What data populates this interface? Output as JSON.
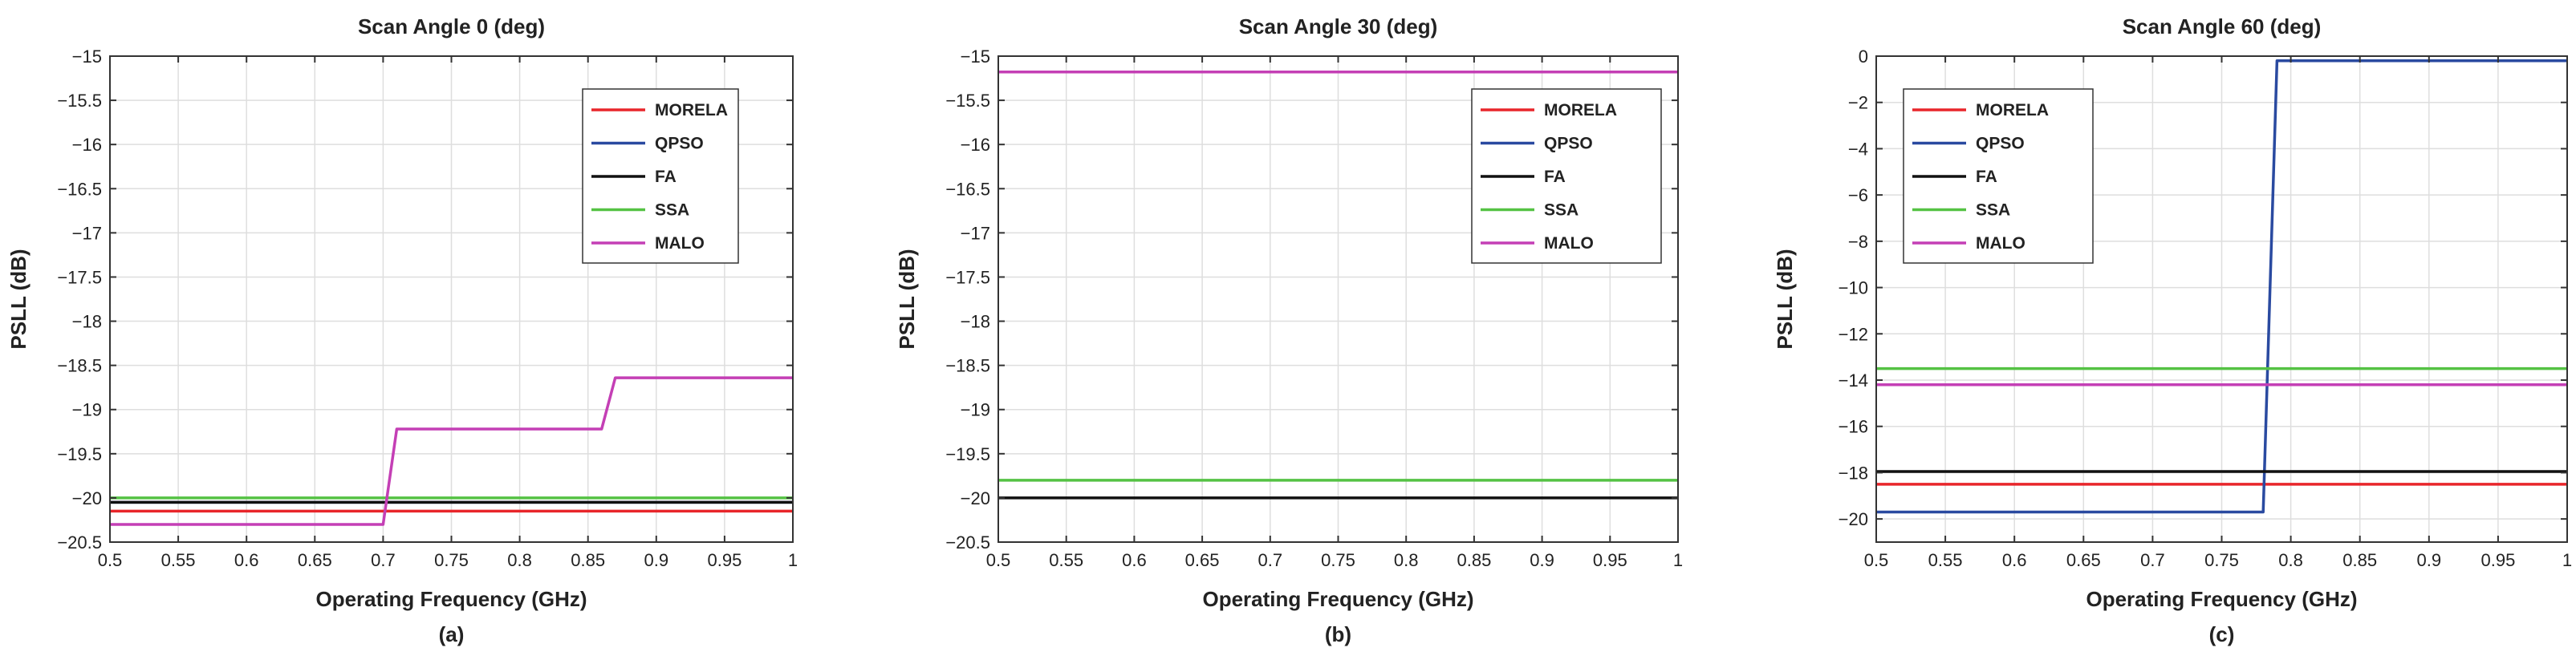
{
  "figure": {
    "captions": [
      "(a)",
      "(b)",
      "(c)"
    ]
  },
  "chart_data": [
    {
      "type": "line",
      "title": "Scan Angle 0 (deg)",
      "xlabel": "Operating Frequency (GHz)",
      "ylabel": "PSLL (dB)",
      "xlim": [
        0.5,
        1
      ],
      "ylim": [
        -20.5,
        -15
      ],
      "xticks": [
        0.5,
        0.55,
        0.6,
        0.65,
        0.7,
        0.75,
        0.8,
        0.85,
        0.9,
        0.95,
        1
      ],
      "xtick_labels": [
        "0.5",
        "0.55",
        "0.6",
        "0.65",
        "0.7",
        "0.75",
        "0.8",
        "0.85",
        "0.9",
        "0.95",
        "1"
      ],
      "yticks": [
        -20.5,
        -20,
        -19.5,
        -19,
        -18.5,
        -18,
        -17.5,
        -17,
        -16.5,
        -16,
        -15.5,
        -15
      ],
      "ytick_labels": [
        "−20.5",
        "−20",
        "−19.5",
        "−19",
        "−18.5",
        "−18",
        "−17.5",
        "−17",
        "−16.5",
        "−16",
        "−15.5",
        "−15"
      ],
      "grid": true,
      "legend_position": "top-right",
      "series": [
        {
          "name": "MORELA",
          "color": "#e8262b",
          "x": [
            0.5,
            1
          ],
          "y": [
            -20.15,
            -20.15
          ]
        },
        {
          "name": "QPSO",
          "color": "#2a4aa0",
          "x": [
            0.5,
            1
          ],
          "y": [
            -20.05,
            -20.05
          ]
        },
        {
          "name": "FA",
          "color": "#111111",
          "x": [
            0.5,
            1
          ],
          "y": [
            -20.05,
            -20.05
          ]
        },
        {
          "name": "SSA",
          "color": "#55c244",
          "x": [
            0.5,
            1
          ],
          "y": [
            -20.0,
            -20.0
          ]
        },
        {
          "name": "MALO",
          "color": "#c43fb5",
          "x": [
            0.5,
            0.7,
            0.71,
            0.86,
            0.87,
            1
          ],
          "y": [
            -20.3,
            -20.3,
            -19.22,
            -19.22,
            -18.64,
            -18.64
          ]
        }
      ]
    },
    {
      "type": "line",
      "title": "Scan Angle 30 (deg)",
      "xlabel": "Operating Frequency (GHz)",
      "ylabel": "PSLL (dB)",
      "xlim": [
        0.5,
        1
      ],
      "ylim": [
        -20.5,
        -15
      ],
      "xticks": [
        0.5,
        0.55,
        0.6,
        0.65,
        0.7,
        0.75,
        0.8,
        0.85,
        0.9,
        0.95,
        1
      ],
      "xtick_labels": [
        "0.5",
        "0.55",
        "0.6",
        "0.65",
        "0.7",
        "0.75",
        "0.8",
        "0.85",
        "0.9",
        "0.95",
        "1"
      ],
      "yticks": [
        -20.5,
        -20,
        -19.5,
        -19,
        -18.5,
        -18,
        -17.5,
        -17,
        -16.5,
        -16,
        -15.5,
        -15
      ],
      "ytick_labels": [
        "−20.5",
        "−20",
        "−19.5",
        "−19",
        "−18.5",
        "−18",
        "−17.5",
        "−17",
        "−16.5",
        "−16",
        "−15.5",
        "−15"
      ],
      "grid": true,
      "legend_position": "top-right",
      "series": [
        {
          "name": "MORELA",
          "color": "#e8262b",
          "x": [
            0.5,
            1
          ],
          "y": [
            -15.18,
            -15.18
          ]
        },
        {
          "name": "QPSO",
          "color": "#2a4aa0",
          "x": [
            0.5,
            1
          ],
          "y": [
            -15.18,
            -15.18
          ]
        },
        {
          "name": "FA",
          "color": "#111111",
          "x": [
            0.5,
            1
          ],
          "y": [
            -20.0,
            -20.0
          ]
        },
        {
          "name": "SSA",
          "color": "#55c244",
          "x": [
            0.5,
            1
          ],
          "y": [
            -19.8,
            -19.8
          ]
        },
        {
          "name": "MALO",
          "color": "#c43fb5",
          "x": [
            0.5,
            1
          ],
          "y": [
            -15.18,
            -15.18
          ]
        }
      ]
    },
    {
      "type": "line",
      "title": "Scan Angle 60 (deg)",
      "xlabel": "Operating Frequency (GHz)",
      "ylabel": "PSLL (dB)",
      "xlim": [
        0.5,
        1
      ],
      "ylim": [
        -21,
        0
      ],
      "xticks": [
        0.5,
        0.55,
        0.6,
        0.65,
        0.7,
        0.75,
        0.8,
        0.85,
        0.9,
        0.95,
        1
      ],
      "xtick_labels": [
        "0.5",
        "0.55",
        "0.6",
        "0.65",
        "0.7",
        "0.75",
        "0.8",
        "0.85",
        "0.9",
        "0.95",
        "1"
      ],
      "yticks": [
        -20,
        -18,
        -16,
        -14,
        -12,
        -10,
        -8,
        -6,
        -4,
        -2,
        0
      ],
      "ytick_labels": [
        "−20",
        "−18",
        "−16",
        "−14",
        "−12",
        "−10",
        "−8",
        "−6",
        "−4",
        "−2",
        "0"
      ],
      "grid": true,
      "legend_position": "top-left",
      "series": [
        {
          "name": "MORELA",
          "color": "#e8262b",
          "x": [
            0.5,
            1
          ],
          "y": [
            -18.5,
            -18.5
          ]
        },
        {
          "name": "QPSO",
          "color": "#2a4aa0",
          "x": [
            0.5,
            0.78,
            0.79,
            1
          ],
          "y": [
            -19.7,
            -19.7,
            -0.2,
            -0.2
          ]
        },
        {
          "name": "FA",
          "color": "#111111",
          "x": [
            0.5,
            1
          ],
          "y": [
            -17.95,
            -17.95
          ]
        },
        {
          "name": "SSA",
          "color": "#55c244",
          "x": [
            0.5,
            1
          ],
          "y": [
            -13.5,
            -13.5
          ]
        },
        {
          "name": "MALO",
          "color": "#c43fb5",
          "x": [
            0.5,
            1
          ],
          "y": [
            -14.2,
            -14.2
          ]
        }
      ]
    }
  ]
}
